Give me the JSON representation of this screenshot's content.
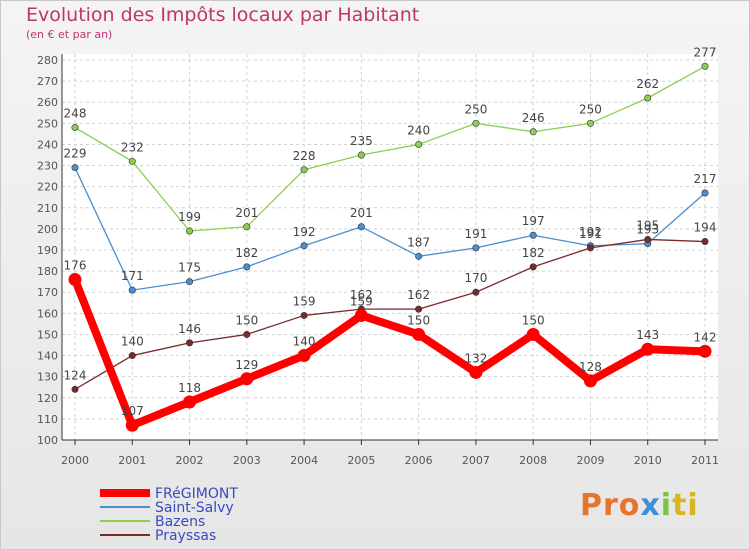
{
  "chart_data": {
    "type": "line",
    "title": "Evolution des Impôts locaux par Habitant",
    "subtitle": "(en € et par an)",
    "x": [
      "2000",
      "2001",
      "2002",
      "2003",
      "2004",
      "2005",
      "2006",
      "2007",
      "2008",
      "2009",
      "2010",
      "2011"
    ],
    "ylim": [
      100,
      280
    ],
    "yticks": [
      100,
      110,
      120,
      130,
      140,
      150,
      160,
      170,
      180,
      190,
      200,
      210,
      220,
      230,
      240,
      250,
      260,
      270,
      280
    ],
    "series": [
      {
        "name": "FRéGIMONT",
        "color": "#ff0000",
        "values": [
          176,
          107,
          118,
          129,
          140,
          159,
          150,
          132,
          150,
          128,
          143,
          142
        ],
        "labels": [
          "176",
          "107",
          "118",
          "129",
          "140",
          "159",
          "150",
          "132",
          "150",
          "128",
          "143",
          "142"
        ]
      },
      {
        "name": "Saint-Salvy",
        "color": "#4a8fd0",
        "values": [
          229,
          171,
          175,
          182,
          192,
          201,
          187,
          191,
          197,
          192,
          193,
          217
        ],
        "labels": [
          "229",
          "171",
          "175",
          "182",
          "192",
          "201",
          "187",
          "191",
          "197",
          "192",
          "193",
          "217"
        ]
      },
      {
        "name": "Bazens",
        "color": "#88d050",
        "values": [
          248,
          232,
          199,
          201,
          228,
          235,
          240,
          250,
          246,
          250,
          262,
          277
        ],
        "labels": [
          "248",
          "232",
          "199",
          "201",
          "228",
          "235",
          "240",
          "250",
          "246",
          "250",
          "262",
          "277"
        ]
      },
      {
        "name": "Prayssas",
        "color": "#7a2a2a",
        "values": [
          124,
          140,
          146,
          150,
          159,
          162,
          162,
          170,
          182,
          191,
          195,
          194
        ],
        "labels": [
          "124",
          "140",
          "146",
          "150",
          "159",
          "162",
          "162",
          "170",
          "182",
          "191",
          "195",
          "194"
        ]
      }
    ]
  },
  "logo": {
    "p1": "Pro",
    "p2": "x",
    "p3": "i",
    "p4": "ti"
  }
}
